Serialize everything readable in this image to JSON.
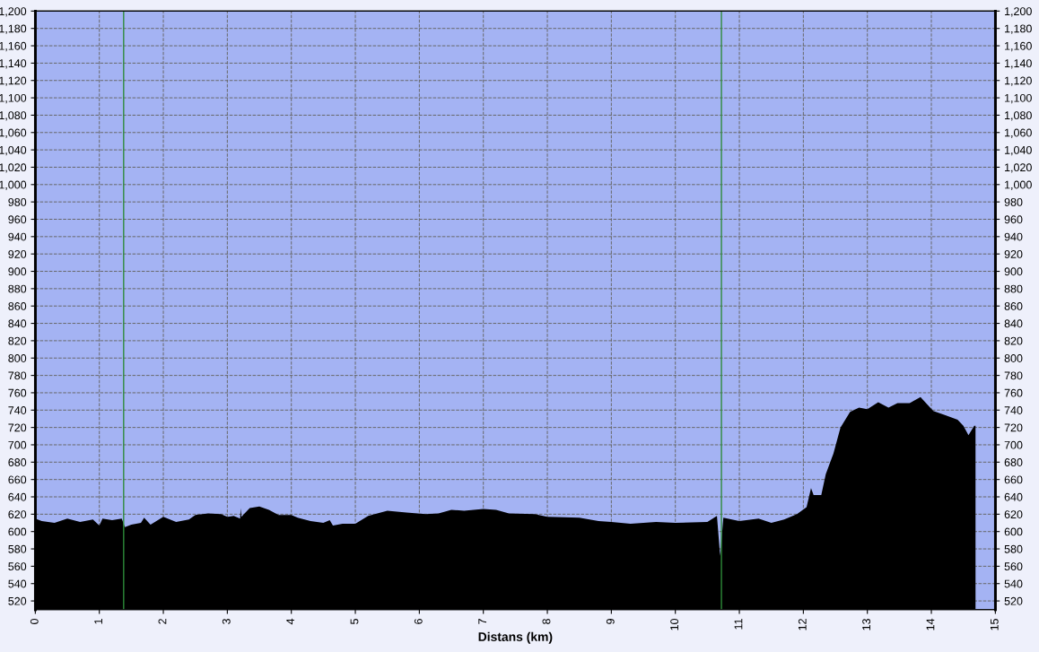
{
  "chart_data": {
    "type": "area",
    "xlabel": "Distans (km)",
    "x": [
      0,
      0.1,
      0.3,
      0.5,
      0.7,
      0.9,
      1.0,
      1.05,
      1.2,
      1.35,
      1.4,
      1.5,
      1.65,
      1.7,
      1.8,
      2.0,
      2.2,
      2.4,
      2.5,
      2.7,
      2.9,
      3.0,
      3.1,
      3.2,
      3.21,
      3.22,
      3.35,
      3.5,
      3.65,
      3.8,
      4.0,
      4.1,
      4.3,
      4.5,
      4.6,
      4.65,
      4.8,
      5.0,
      5.2,
      5.5,
      5.8,
      6.1,
      6.3,
      6.5,
      6.7,
      7.0,
      7.2,
      7.4,
      7.8,
      8.0,
      8.5,
      8.8,
      9.0,
      9.3,
      9.7,
      10.0,
      10.5,
      10.65,
      10.7,
      10.75,
      11.0,
      11.3,
      11.5,
      11.7,
      11.9,
      12.05,
      12.12,
      12.16,
      12.28,
      12.35,
      12.47,
      12.58,
      12.73,
      12.87,
      13.0,
      13.17,
      13.33,
      13.47,
      13.66,
      13.83,
      14.03,
      14.22,
      14.41,
      14.5,
      14.58,
      14.67,
      14.69
    ],
    "series": [
      {
        "color": "#000000",
        "values": [
          615,
          612,
          610,
          615,
          611,
          614,
          607,
          615,
          613,
          615,
          605,
          608,
          610,
          616,
          608,
          617,
          611,
          614,
          619,
          621,
          620,
          617,
          618,
          615,
          627,
          617,
          627,
          629,
          625,
          619,
          619,
          616,
          612,
          610,
          613,
          607,
          609,
          609,
          618,
          624,
          622,
          620,
          621,
          625,
          624,
          626,
          625,
          621,
          620,
          617,
          616,
          612,
          611,
          609,
          611,
          610,
          611,
          618,
          572,
          616,
          612,
          615,
          610,
          614,
          620,
          628,
          650,
          642,
          642,
          666,
          690,
          720,
          738,
          743,
          741,
          749,
          743,
          748,
          748,
          755,
          739,
          734,
          729,
          722,
          711,
          722,
          722
        ]
      }
    ],
    "xlim": [
      0,
      15
    ],
    "xticks": [
      0,
      1,
      2,
      3,
      4,
      5,
      6,
      7,
      8,
      9,
      10,
      11,
      12,
      13,
      14,
      15
    ],
    "ylim": [
      510,
      1200
    ],
    "yticks": [
      520,
      540,
      560,
      580,
      600,
      620,
      640,
      660,
      680,
      700,
      720,
      740,
      760,
      780,
      800,
      820,
      840,
      860,
      880,
      900,
      920,
      940,
      960,
      980,
      {
        "value": 1000,
        "label": "1,000"
      },
      {
        "value": 1020,
        "label": "1,020"
      },
      {
        "value": 1040,
        "label": "1,040"
      },
      {
        "value": 1060,
        "label": "1,060"
      },
      {
        "value": 1080,
        "label": "1,080"
      },
      {
        "value": 1100,
        "label": "1,100"
      },
      {
        "value": 1120,
        "label": "1,120"
      },
      {
        "value": 1140,
        "label": "1,140"
      },
      {
        "value": 1160,
        "label": "1,160"
      },
      {
        "value": 1180,
        "label": "1,180"
      },
      {
        "value": 1200,
        "label": "1,200"
      }
    ],
    "y2lim": [
      510,
      1200
    ],
    "y2ticks": [
      520,
      540,
      560,
      580,
      600,
      620,
      640,
      660,
      680,
      700,
      720,
      740,
      760,
      780,
      800,
      820,
      840,
      860,
      880,
      900,
      920,
      940,
      960,
      980,
      {
        "value": 1000,
        "label": "1,000"
      },
      {
        "value": 1020,
        "label": "1,020"
      },
      {
        "value": 1040,
        "label": "1,040"
      },
      {
        "value": 1060,
        "label": "1,060"
      },
      {
        "value": 1080,
        "label": "1,080"
      },
      {
        "value": 1100,
        "label": "1,100"
      },
      {
        "value": 1120,
        "label": "1,120"
      },
      {
        "value": 1140,
        "label": "1,140"
      },
      {
        "value": 1160,
        "label": "1,160"
      },
      {
        "value": 1180,
        "label": "1,180"
      },
      {
        "value": 1200,
        "label": "1,200"
      }
    ],
    "ref_lines": [
      {
        "axis": "x",
        "value": 1.38,
        "color": "#2e8b3a"
      },
      {
        "axis": "x",
        "value": 10.72,
        "color": "#2e8b3a"
      }
    ],
    "grid": true,
    "legend": false
  }
}
